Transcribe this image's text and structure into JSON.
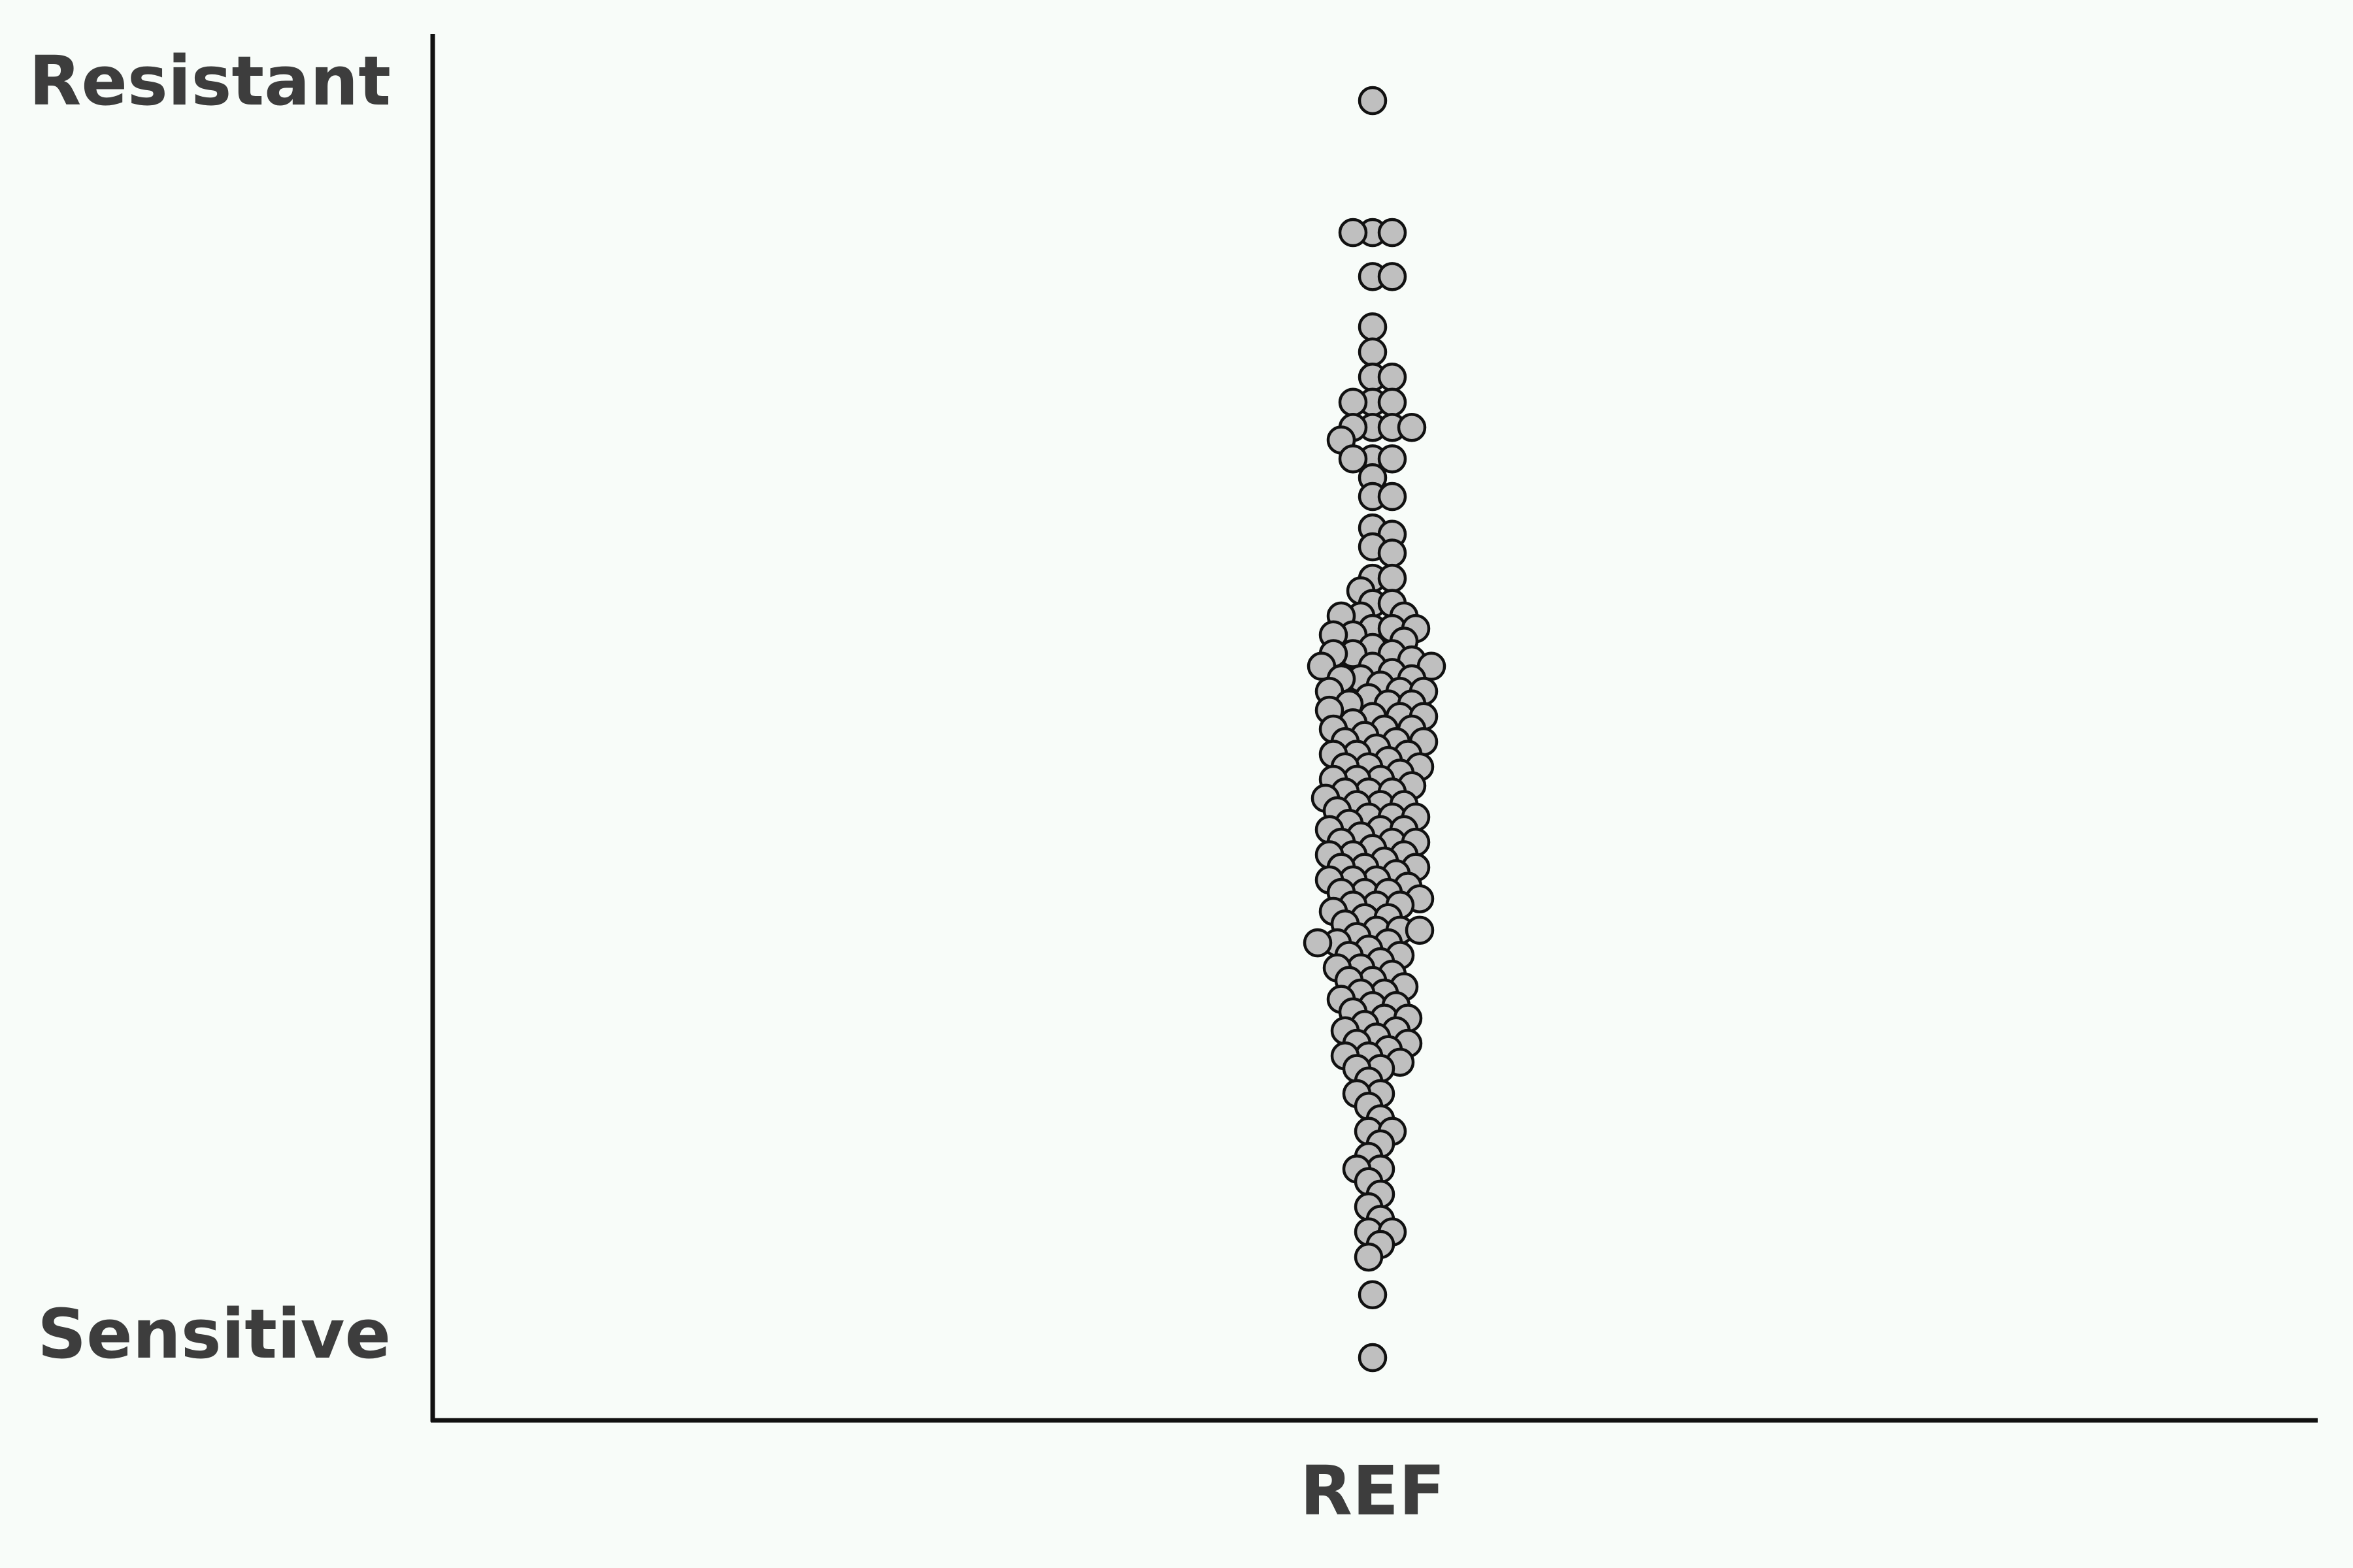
{
  "chart_data": {
    "type": "scatter",
    "subtype": "beeswarm",
    "title": "",
    "xlabel": "",
    "ylabel": "",
    "categories": [
      "REF"
    ],
    "y_ticks": [
      {
        "label": "Resistant",
        "value": 1.0
      },
      {
        "label": "Sensitive",
        "value": 0.0
      }
    ],
    "ylim": [
      -0.05,
      1.05
    ],
    "grid": false,
    "legend": "none",
    "colors": {
      "marker_fill": "#bfbfbf",
      "marker_edge": "#111111",
      "axis": "#111111",
      "text": "#3d3d3d",
      "background": "#f8fcf9"
    },
    "series": [
      {
        "category": "REF",
        "values": [
          1.0,
          0.895,
          0.895,
          0.895,
          0.86,
          0.86,
          0.82,
          0.8,
          0.78,
          0.78,
          0.76,
          0.76,
          0.76,
          0.74,
          0.74,
          0.74,
          0.74,
          0.73,
          0.715,
          0.715,
          0.715,
          0.7,
          0.685,
          0.685,
          0.66,
          0.655,
          0.645,
          0.64,
          0.62,
          0.62,
          0.61,
          0.6,
          0.6,
          0.59,
          0.59,
          0.59,
          0.58,
          0.58,
          0.58,
          0.575,
          0.575,
          0.57,
          0.565,
          0.56,
          0.56,
          0.56,
          0.555,
          0.55,
          0.55,
          0.55,
          0.545,
          0.54,
          0.54,
          0.54,
          0.535,
          0.53,
          0.53,
          0.53,
          0.525,
          0.52,
          0.52,
          0.52,
          0.515,
          0.51,
          0.51,
          0.51,
          0.505,
          0.5,
          0.5,
          0.5,
          0.495,
          0.49,
          0.49,
          0.49,
          0.485,
          0.48,
          0.48,
          0.48,
          0.475,
          0.47,
          0.47,
          0.47,
          0.465,
          0.46,
          0.46,
          0.46,
          0.455,
          0.45,
          0.45,
          0.45,
          0.445,
          0.44,
          0.44,
          0.44,
          0.435,
          0.43,
          0.43,
          0.43,
          0.425,
          0.42,
          0.42,
          0.42,
          0.415,
          0.41,
          0.41,
          0.41,
          0.405,
          0.4,
          0.4,
          0.4,
          0.395,
          0.39,
          0.39,
          0.39,
          0.385,
          0.38,
          0.38,
          0.38,
          0.375,
          0.37,
          0.37,
          0.37,
          0.365,
          0.36,
          0.36,
          0.36,
          0.355,
          0.35,
          0.35,
          0.345,
          0.34,
          0.34,
          0.34,
          0.335,
          0.33,
          0.33,
          0.33,
          0.325,
          0.32,
          0.32,
          0.315,
          0.31,
          0.31,
          0.305,
          0.3,
          0.3,
          0.295,
          0.29,
          0.29,
          0.285,
          0.28,
          0.28,
          0.275,
          0.27,
          0.27,
          0.265,
          0.26,
          0.26,
          0.255,
          0.25,
          0.25,
          0.245,
          0.24,
          0.24,
          0.235,
          0.23,
          0.23,
          0.22,
          0.21,
          0.21,
          0.2,
          0.19,
          0.18,
          0.18,
          0.17,
          0.16,
          0.15,
          0.15,
          0.14,
          0.13,
          0.12,
          0.11,
          0.1,
          0.1,
          0.09,
          0.08,
          0.05,
          0.0
        ]
      }
    ]
  }
}
